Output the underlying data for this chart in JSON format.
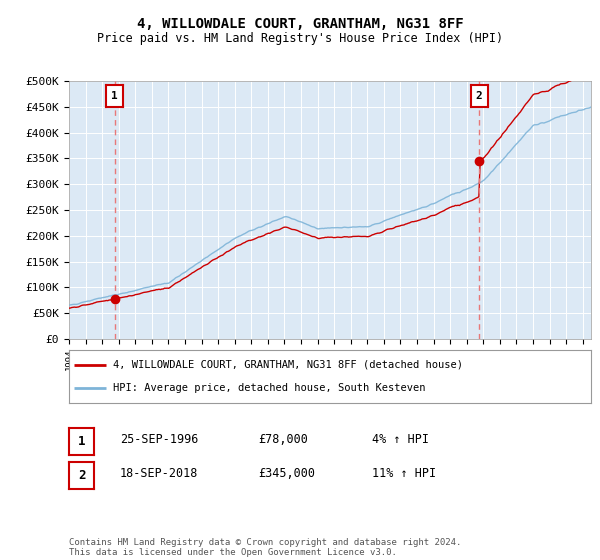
{
  "title": "4, WILLOWDALE COURT, GRANTHAM, NG31 8FF",
  "subtitle": "Price paid vs. HM Land Registry's House Price Index (HPI)",
  "ylim": [
    0,
    500000
  ],
  "yticks": [
    0,
    50000,
    100000,
    150000,
    200000,
    250000,
    300000,
    350000,
    400000,
    450000,
    500000
  ],
  "ytick_labels": [
    "£0",
    "£50K",
    "£100K",
    "£150K",
    "£200K",
    "£250K",
    "£300K",
    "£350K",
    "£400K",
    "£450K",
    "£500K"
  ],
  "background_color": "#ffffff",
  "plot_bg_color": "#dce9f5",
  "grid_color": "#ffffff",
  "hpi_line_color": "#7eb4d8",
  "price_line_color": "#cc0000",
  "annotation_line_color": "#e87878",
  "sale1_year": 1996.75,
  "sale1_price": 78000,
  "sale2_year": 2018.75,
  "sale2_price": 345000,
  "legend_line1": "4, WILLOWDALE COURT, GRANTHAM, NG31 8FF (detached house)",
  "legend_line2": "HPI: Average price, detached house, South Kesteven",
  "table_row1": [
    "1",
    "25-SEP-1996",
    "£78,000",
    "4% ↑ HPI"
  ],
  "table_row2": [
    "2",
    "18-SEP-2018",
    "£345,000",
    "11% ↑ HPI"
  ],
  "footer": "Contains HM Land Registry data © Crown copyright and database right 2024.\nThis data is licensed under the Open Government Licence v3.0.",
  "xlim_start": 1994,
  "xlim_end": 2025.5
}
